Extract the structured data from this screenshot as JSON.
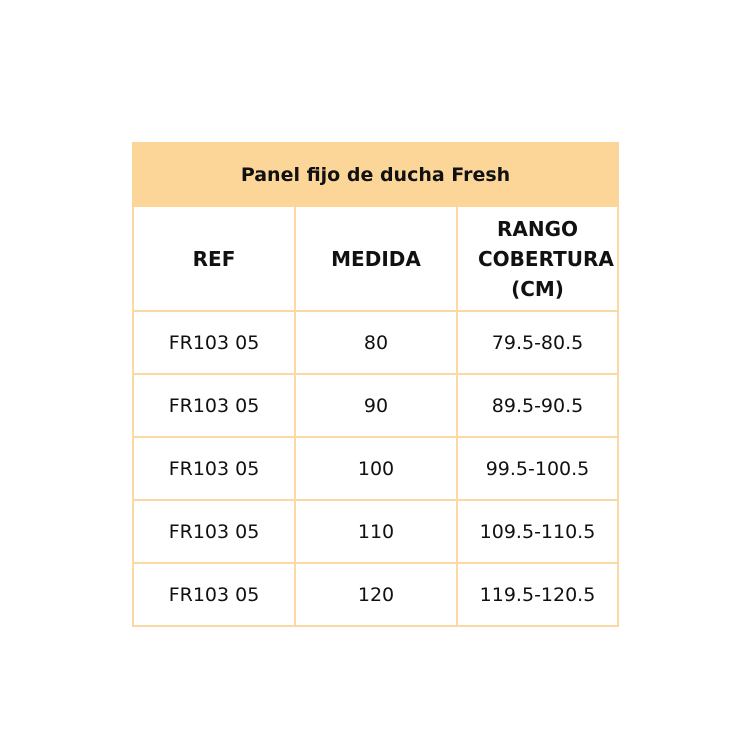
{
  "table": {
    "title": "Panel fijo de ducha Fresh",
    "header_color": "#fcd698",
    "columns": [
      "REF",
      "MEDIDA",
      "RANGO COBERTURA (CM)"
    ],
    "rows": [
      [
        "FR103 05",
        "80",
        "79.5-80.5"
      ],
      [
        "FR103 05",
        "90",
        "89.5-90.5"
      ],
      [
        "FR103 05",
        "100",
        "99.5-100.5"
      ],
      [
        "FR103 05",
        "110",
        "109.5-110.5"
      ],
      [
        "FR103 05",
        "120",
        "119.5-120.5"
      ]
    ]
  }
}
